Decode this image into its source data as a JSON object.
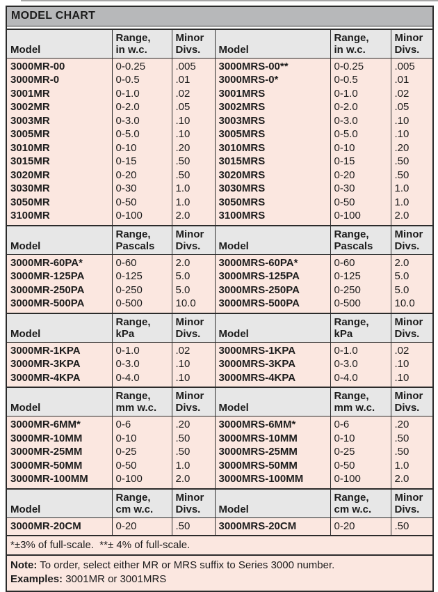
{
  "title": "MODEL CHART",
  "colors": {
    "title_bar_bg": "#b7b8ba",
    "header_bg": "#e7e7e7",
    "row_bg": "#fbe7e0",
    "border": "#2b2b2b",
    "text": "#1c1c1c",
    "page_bg": "#ffffff"
  },
  "column_headers": {
    "model": "Model",
    "range_prefix": "Range,",
    "minor_line1": "Minor",
    "minor_line2": "Divs."
  },
  "sections": [
    {
      "unit": "in w.c.",
      "rows": [
        [
          "3000MR-00",
          "0-0.25",
          ".005",
          "3000MRS-00**",
          "0-0.25",
          ".005"
        ],
        [
          "3000MR-0",
          "0-0.5",
          ".01",
          "3000MRS-0*",
          "0-0.5",
          ".01"
        ],
        [
          "3001MR",
          "0-1.0",
          ".02",
          "3001MRS",
          "0-1.0",
          ".02"
        ],
        [
          "3002MR",
          "0-2.0",
          ".05",
          "3002MRS",
          "0-2.0",
          ".05"
        ],
        [
          "3003MR",
          "0-3.0",
          ".10",
          "3003MRS",
          "0-3.0",
          ".10"
        ],
        [
          "3005MR",
          "0-5.0",
          ".10",
          "3005MRS",
          "0-5.0",
          ".10"
        ],
        [
          "3010MR",
          "0-10",
          ".20",
          "3010MRS",
          "0-10",
          ".20"
        ],
        [
          "3015MR",
          "0-15",
          ".50",
          "3015MRS",
          "0-15",
          ".50"
        ],
        [
          "3020MR",
          "0-20",
          ".50",
          "3020MRS",
          "0-20",
          ".50"
        ],
        [
          "3030MR",
          "0-30",
          "1.0",
          "3030MRS",
          "0-30",
          "1.0"
        ],
        [
          "3050MR",
          "0-50",
          "1.0",
          "3050MRS",
          "0-50",
          "1.0"
        ],
        [
          "3100MR",
          "0-100",
          "2.0",
          "3100MRS",
          "0-100",
          "2.0"
        ]
      ]
    },
    {
      "unit": "Pascals",
      "rows": [
        [
          "3000MR-60PA*",
          "0-60",
          "2.0",
          "3000MRS-60PA*",
          "0-60",
          "2.0"
        ],
        [
          "3000MR-125PA",
          "0-125",
          "5.0",
          "3000MRS-125PA",
          "0-125",
          "5.0"
        ],
        [
          "3000MR-250PA",
          "0-250",
          "5.0",
          "3000MRS-250PA",
          "0-250",
          "5.0"
        ],
        [
          "3000MR-500PA",
          "0-500",
          "10.0",
          "3000MRS-500PA",
          "0-500",
          "10.0"
        ]
      ]
    },
    {
      "unit": "kPa",
      "rows": [
        [
          "3000MR-1KPA",
          "0-1.0",
          ".02",
          "3000MRS-1KPA",
          "0-1.0",
          ".02"
        ],
        [
          "3000MR-3KPA",
          "0-3.0",
          ".10",
          "3000MRS-3KPA",
          "0-3.0",
          ".10"
        ],
        [
          "3000MR-4KPA",
          "0-4.0",
          ".10",
          "3000MRS-4KPA",
          "0-4.0",
          ".10"
        ]
      ]
    },
    {
      "unit": "mm w.c.",
      "rows": [
        [
          "3000MR-6MM*",
          "0-6",
          ".20",
          "3000MRS-6MM*",
          "0-6",
          ".20"
        ],
        [
          "3000MR-10MM",
          "0-10",
          ".50",
          "3000MRS-10MM",
          "0-10",
          ".50"
        ],
        [
          "3000MR-25MM",
          "0-25",
          ".50",
          "3000MRS-25MM",
          "0-25",
          ".50"
        ],
        [
          "3000MR-50MM",
          "0-50",
          "1.0",
          "3000MRS-50MM",
          "0-50",
          "1.0"
        ],
        [
          "3000MR-100MM",
          "0-100",
          "2.0",
          "3000MRS-100MM",
          "0-100",
          "2.0"
        ]
      ]
    },
    {
      "unit": "cm w.c.",
      "rows": [
        [
          "3000MR-20CM",
          "0-20",
          ".50",
          "3000MRS-20CM",
          "0-20",
          ".50"
        ]
      ]
    }
  ],
  "footnote": "*±3% of full-scale.  **± 4% of full-scale.",
  "note": {
    "label": "Note:",
    "text": "To order, select either MR or MRS suffix to Series 3000 number.",
    "examples_label": "Examples:",
    "examples_text": "3001MR or 3001MRS"
  }
}
